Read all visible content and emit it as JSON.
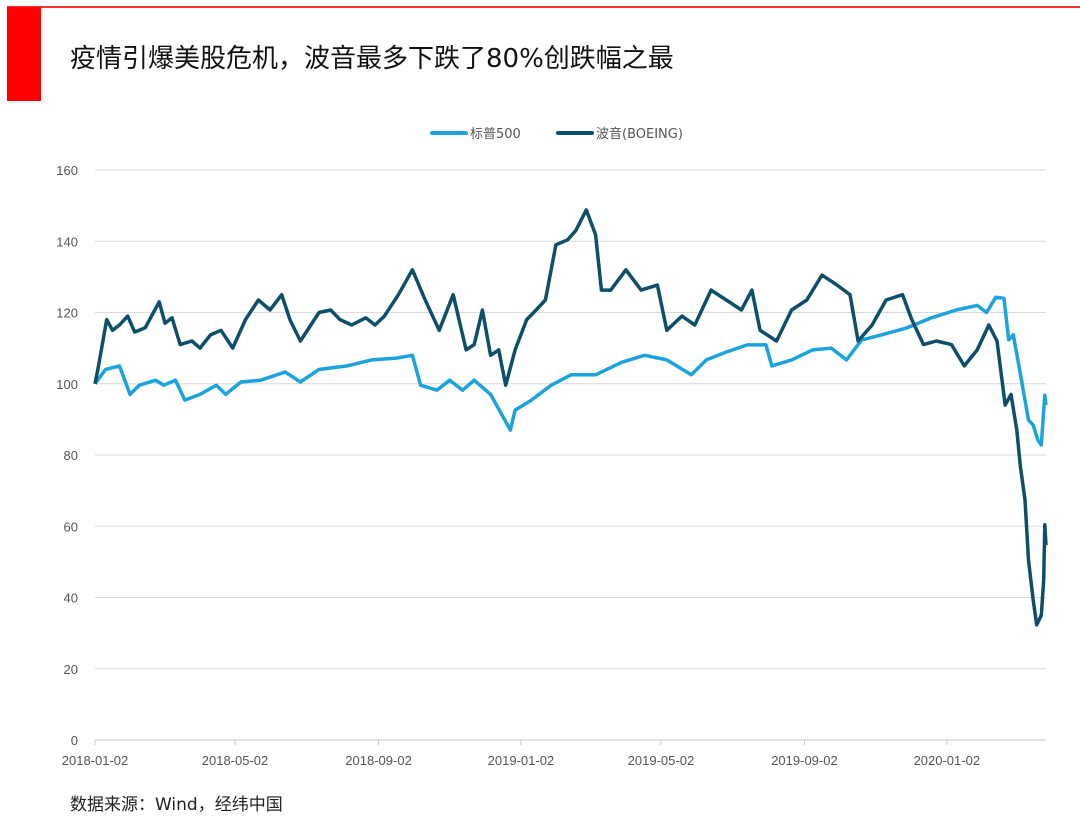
{
  "title": "疫情引爆美股危机，波音最多下跌了80%创跌幅之最",
  "source": "数据来源：Wind，经纬中国",
  "colors": {
    "accent": "#ff0000",
    "sp500": "#1aa3dc",
    "boeing": "#0d4f6b",
    "grid": "#d9d9d9"
  },
  "chart_data": {
    "type": "line",
    "title": "",
    "xlabel": "",
    "ylabel": "",
    "ylim": [
      0,
      160
    ],
    "yticks": [
      0,
      20,
      40,
      60,
      80,
      100,
      120,
      140,
      160
    ],
    "xlim": [
      "2018-01-02",
      "2020-03-27"
    ],
    "xticks": [
      "2018-01-02",
      "2018-05-02",
      "2018-09-02",
      "2019-01-02",
      "2019-05-02",
      "2019-09-02",
      "2020-01-02"
    ],
    "grid": "horizontal",
    "legend_position": "top",
    "series": [
      {
        "name": "标普500",
        "color": "#1aa3dc",
        "points": [
          [
            "2018-01-02",
            100
          ],
          [
            "2018-01-11",
            104
          ],
          [
            "2018-01-23",
            105
          ],
          [
            "2018-02-01",
            97
          ],
          [
            "2018-02-09",
            99.6
          ],
          [
            "2018-02-23",
            101
          ],
          [
            "2018-03-02",
            99.6
          ],
          [
            "2018-03-12",
            101
          ],
          [
            "2018-03-20",
            95.4
          ],
          [
            "2018-04-02",
            97
          ],
          [
            "2018-04-16",
            99.6
          ],
          [
            "2018-04-24",
            97
          ],
          [
            "2018-05-07",
            100.5
          ],
          [
            "2018-05-24",
            101
          ],
          [
            "2018-06-14",
            103.3
          ],
          [
            "2018-06-27",
            100.5
          ],
          [
            "2018-07-13",
            104
          ],
          [
            "2018-08-06",
            105
          ],
          [
            "2018-08-27",
            106.7
          ],
          [
            "2018-09-17",
            107.2
          ],
          [
            "2018-10-01",
            108
          ],
          [
            "2018-10-08",
            99.6
          ],
          [
            "2018-10-22",
            98.2
          ],
          [
            "2018-11-02",
            101
          ],
          [
            "2018-11-13",
            98.2
          ],
          [
            "2018-11-23",
            101
          ],
          [
            "2018-12-07",
            97
          ],
          [
            "2018-12-24",
            87
          ],
          [
            "2018-12-28",
            92.6
          ],
          [
            "2019-01-11",
            95.4
          ],
          [
            "2019-01-28",
            99.6
          ],
          [
            "2019-02-14",
            102.5
          ],
          [
            "2019-03-07",
            102.5
          ],
          [
            "2019-03-29",
            106
          ],
          [
            "2019-04-18",
            108
          ],
          [
            "2019-05-07",
            106.7
          ],
          [
            "2019-05-28",
            102.5
          ],
          [
            "2019-06-10",
            106.7
          ],
          [
            "2019-06-27",
            108.9
          ],
          [
            "2019-07-15",
            110.9
          ],
          [
            "2019-07-31",
            110.9
          ],
          [
            "2019-08-05",
            105
          ],
          [
            "2019-08-22",
            106.7
          ],
          [
            "2019-09-09",
            109.5
          ],
          [
            "2019-09-25",
            110
          ],
          [
            "2019-10-08",
            106.7
          ],
          [
            "2019-10-21",
            112.3
          ],
          [
            "2019-11-07",
            113.7
          ],
          [
            "2019-11-29",
            115.7
          ],
          [
            "2019-12-20",
            118.5
          ],
          [
            "2020-01-10",
            120.7
          ],
          [
            "2020-01-28",
            122
          ],
          [
            "2020-02-05",
            120
          ],
          [
            "2020-02-13",
            124.3
          ],
          [
            "2020-02-20",
            124
          ],
          [
            "2020-02-24",
            112.3
          ],
          [
            "2020-02-28",
            113.7
          ],
          [
            "2020-03-06",
            101
          ],
          [
            "2020-03-12",
            89.8
          ],
          [
            "2020-03-16",
            88.4
          ],
          [
            "2020-03-20",
            84.2
          ],
          [
            "2020-03-23",
            82.8
          ],
          [
            "2020-03-26",
            96.8
          ],
          [
            "2020-03-27",
            94
          ]
        ]
      },
      {
        "name": "波音(BOEING)",
        "color": "#0d4f6b",
        "points": [
          [
            "2018-01-02",
            100
          ],
          [
            "2018-01-05",
            105
          ],
          [
            "2018-01-12",
            118
          ],
          [
            "2018-01-17",
            115
          ],
          [
            "2018-01-23",
            116.5
          ],
          [
            "2018-01-30",
            119
          ],
          [
            "2018-02-05",
            114.5
          ],
          [
            "2018-02-14",
            115.7
          ],
          [
            "2018-02-26",
            123
          ],
          [
            "2018-03-03",
            117
          ],
          [
            "2018-03-09",
            118.5
          ],
          [
            "2018-03-16",
            111
          ],
          [
            "2018-03-26",
            112
          ],
          [
            "2018-04-02",
            110
          ],
          [
            "2018-04-11",
            113.7
          ],
          [
            "2018-04-20",
            115
          ],
          [
            "2018-04-30",
            110
          ],
          [
            "2018-05-11",
            118
          ],
          [
            "2018-05-22",
            123.5
          ],
          [
            "2018-06-01",
            120.7
          ],
          [
            "2018-06-11",
            125
          ],
          [
            "2018-06-18",
            118
          ],
          [
            "2018-06-27",
            112
          ],
          [
            "2018-07-13",
            120
          ],
          [
            "2018-07-23",
            120.7
          ],
          [
            "2018-07-31",
            118
          ],
          [
            "2018-08-10",
            116.5
          ],
          [
            "2018-08-22",
            118.5
          ],
          [
            "2018-08-30",
            116.5
          ],
          [
            "2018-09-07",
            119
          ],
          [
            "2018-09-19",
            125
          ],
          [
            "2018-10-01",
            132
          ],
          [
            "2018-10-12",
            123.5
          ],
          [
            "2018-10-24",
            115
          ],
          [
            "2018-11-05",
            125
          ],
          [
            "2018-11-16",
            109.5
          ],
          [
            "2018-11-23",
            111
          ],
          [
            "2018-11-30",
            120.7
          ],
          [
            "2018-12-07",
            108
          ],
          [
            "2018-12-14",
            109.5
          ],
          [
            "2018-12-20",
            99.6
          ],
          [
            "2018-12-28",
            109.5
          ],
          [
            "2019-01-07",
            118
          ],
          [
            "2019-01-15",
            120.7
          ],
          [
            "2019-01-23",
            123.5
          ],
          [
            "2019-02-01",
            139
          ],
          [
            "2019-02-11",
            140.4
          ],
          [
            "2019-02-18",
            143
          ],
          [
            "2019-02-27",
            148.8
          ],
          [
            "2019-03-07",
            141.8
          ],
          [
            "2019-03-12",
            126.3
          ],
          [
            "2019-03-20",
            126.3
          ],
          [
            "2019-04-02",
            132
          ],
          [
            "2019-04-15",
            126.3
          ],
          [
            "2019-04-29",
            127.7
          ],
          [
            "2019-05-07",
            115
          ],
          [
            "2019-05-20",
            119
          ],
          [
            "2019-05-31",
            116.5
          ],
          [
            "2019-06-14",
            126.3
          ],
          [
            "2019-06-27",
            123.5
          ],
          [
            "2019-07-10",
            120.7
          ],
          [
            "2019-07-19",
            126.3
          ],
          [
            "2019-07-26",
            115
          ],
          [
            "2019-08-09",
            112
          ],
          [
            "2019-08-22",
            120.7
          ],
          [
            "2019-09-04",
            123.5
          ],
          [
            "2019-09-17",
            130.5
          ],
          [
            "2019-09-30",
            127.7
          ],
          [
            "2019-10-11",
            125
          ],
          [
            "2019-10-18",
            112
          ],
          [
            "2019-10-30",
            116.5
          ],
          [
            "2019-11-11",
            123.5
          ],
          [
            "2019-11-25",
            125
          ],
          [
            "2019-12-03",
            118
          ],
          [
            "2019-12-13",
            111
          ],
          [
            "2019-12-24",
            112
          ],
          [
            "2020-01-06",
            111
          ],
          [
            "2020-01-17",
            105
          ],
          [
            "2020-01-28",
            109.5
          ],
          [
            "2020-02-07",
            116.5
          ],
          [
            "2020-02-14",
            112
          ],
          [
            "2020-02-21",
            94
          ],
          [
            "2020-02-26",
            97
          ],
          [
            "2020-03-02",
            87
          ],
          [
            "2020-03-05",
            77
          ],
          [
            "2020-03-09",
            67.4
          ],
          [
            "2020-03-12",
            50.5
          ],
          [
            "2020-03-16",
            39.3
          ],
          [
            "2020-03-19",
            32.3
          ],
          [
            "2020-03-23",
            35
          ],
          [
            "2020-03-25",
            45
          ],
          [
            "2020-03-26",
            60.4
          ],
          [
            "2020-03-27",
            54.7
          ]
        ]
      }
    ]
  }
}
